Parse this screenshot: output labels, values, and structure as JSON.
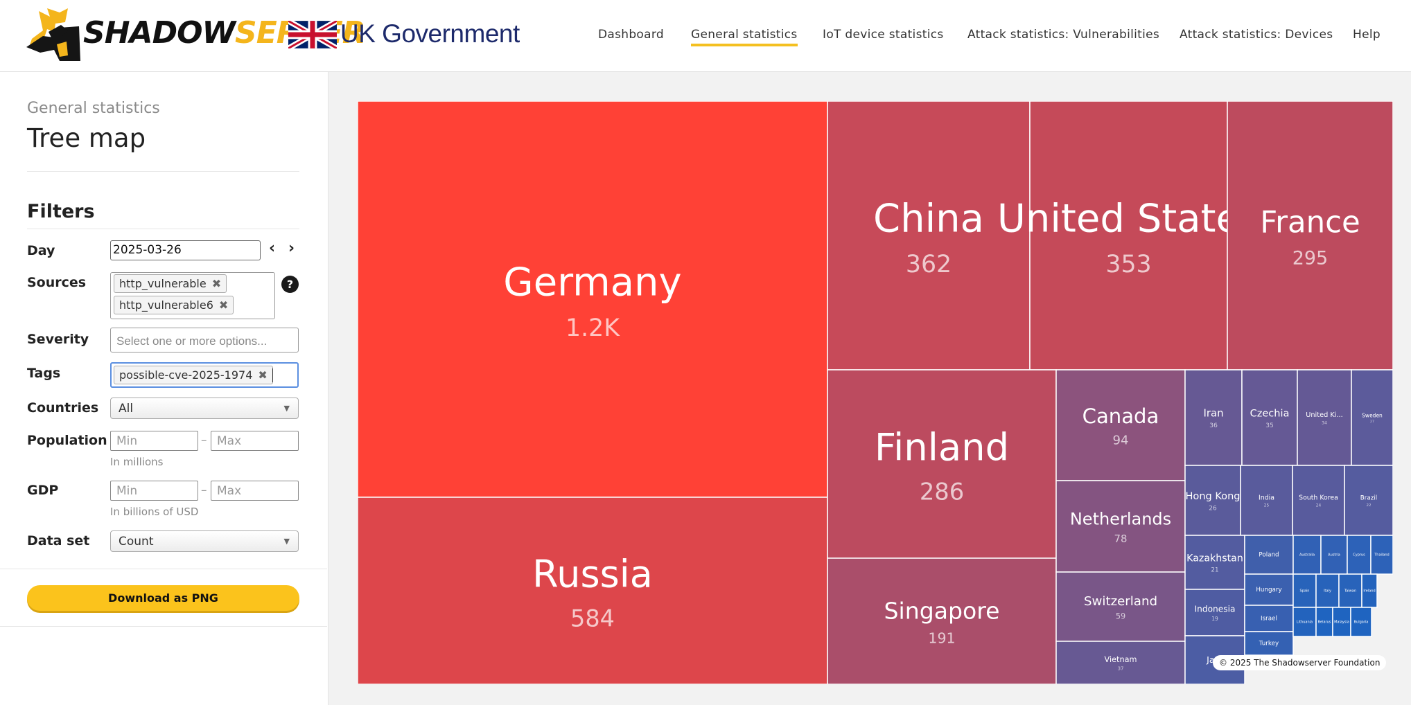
{
  "header": {
    "brand_part1": "SHADOW",
    "brand_part2": "SERVER",
    "partner": "UK Government",
    "nav": [
      "Dashboard",
      "General statistics",
      "IoT device statistics",
      "Attack statistics: Vulnerabilities",
      "Attack statistics: Devices",
      "Help"
    ],
    "active_nav": "General statistics"
  },
  "sidebar": {
    "subtitle": "General statistics",
    "title": "Tree map",
    "filters_heading": "Filters",
    "day": {
      "label": "Day",
      "value": "2025-03-26"
    },
    "sources": {
      "label": "Sources",
      "chips": [
        "http_vulnerable",
        "http_vulnerable6"
      ],
      "help": "?"
    },
    "severity": {
      "label": "Severity",
      "placeholder": "Select one or more options..."
    },
    "tags": {
      "label": "Tags",
      "chips": [
        "possible-cve-2025-1974"
      ]
    },
    "countries": {
      "label": "Countries",
      "value": "All"
    },
    "population": {
      "label": "Population",
      "min_placeholder": "Min",
      "max_placeholder": "Max",
      "hint": "In millions"
    },
    "gdp": {
      "label": "GDP",
      "min_placeholder": "Min",
      "max_placeholder": "Max",
      "hint": "In billions of USD"
    },
    "dataset": {
      "label": "Data set",
      "value": "Count"
    },
    "download_label": "Download as PNG"
  },
  "copyright": "© 2025 The Shadowserver Foundation",
  "chart_data": {
    "type": "treemap",
    "values_unit": "count",
    "max_color": "#ff4136",
    "min_color": "#1f64c0",
    "items": [
      {
        "name": "Germany",
        "label": "1.2K",
        "value": 1200
      },
      {
        "name": "Russia",
        "label": "584",
        "value": 584
      },
      {
        "name": "China",
        "label": "362",
        "value": 362
      },
      {
        "name": "United States",
        "label": "353",
        "value": 353
      },
      {
        "name": "France",
        "label": "295",
        "value": 295
      },
      {
        "name": "Finland",
        "label": "286",
        "value": 286
      },
      {
        "name": "Singapore",
        "label": "191",
        "value": 191
      },
      {
        "name": "Canada",
        "label": "94",
        "value": 94
      },
      {
        "name": "Netherlands",
        "label": "78",
        "value": 78
      },
      {
        "name": "Switzerland",
        "label": "59",
        "value": 59
      },
      {
        "name": "Vietnam",
        "label": "37",
        "value": 37
      },
      {
        "name": "Iran",
        "label": "36",
        "value": 36
      },
      {
        "name": "Czechia",
        "label": "35",
        "value": 35
      },
      {
        "name": "United Ki...",
        "label": "34",
        "value": 34
      },
      {
        "name": "Sweden",
        "label": "27",
        "value": 27
      },
      {
        "name": "Hong Kong",
        "label": "26",
        "value": 26
      },
      {
        "name": "India",
        "label": "25",
        "value": 25
      },
      {
        "name": "South Korea",
        "label": "24",
        "value": 24
      },
      {
        "name": "Brazil",
        "label": "22",
        "value": 22
      },
      {
        "name": "Kazakhstan",
        "label": "21",
        "value": 21
      },
      {
        "name": "Indonesia",
        "label": "19",
        "value": 19
      },
      {
        "name": "Ja...",
        "label": "",
        "value": 17
      },
      {
        "name": "Poland",
        "label": "",
        "value": 12
      },
      {
        "name": "Hungary",
        "label": "",
        "value": 10
      },
      {
        "name": "Israel",
        "label": "",
        "value": 9
      },
      {
        "name": "Turkey",
        "label": "",
        "value": 8
      },
      {
        "name": "Australia",
        "label": "",
        "value": 7
      },
      {
        "name": "Austria",
        "label": "",
        "value": 7
      },
      {
        "name": "Cyprus",
        "label": "",
        "value": 6
      },
      {
        "name": "Thailand",
        "label": "",
        "value": 6
      },
      {
        "name": "Spain",
        "label": "",
        "value": 5
      },
      {
        "name": "Italy",
        "label": "",
        "value": 5
      },
      {
        "name": "Taiwan",
        "label": "",
        "value": 5
      },
      {
        "name": "Ireland",
        "label": "",
        "value": 4
      },
      {
        "name": "Lithuania",
        "label": "",
        "value": 4
      },
      {
        "name": "Belarus",
        "label": "",
        "value": 3
      },
      {
        "name": "Malaysia",
        "label": "",
        "value": 3
      },
      {
        "name": "Bulgaria",
        "label": "",
        "value": 3
      }
    ]
  }
}
